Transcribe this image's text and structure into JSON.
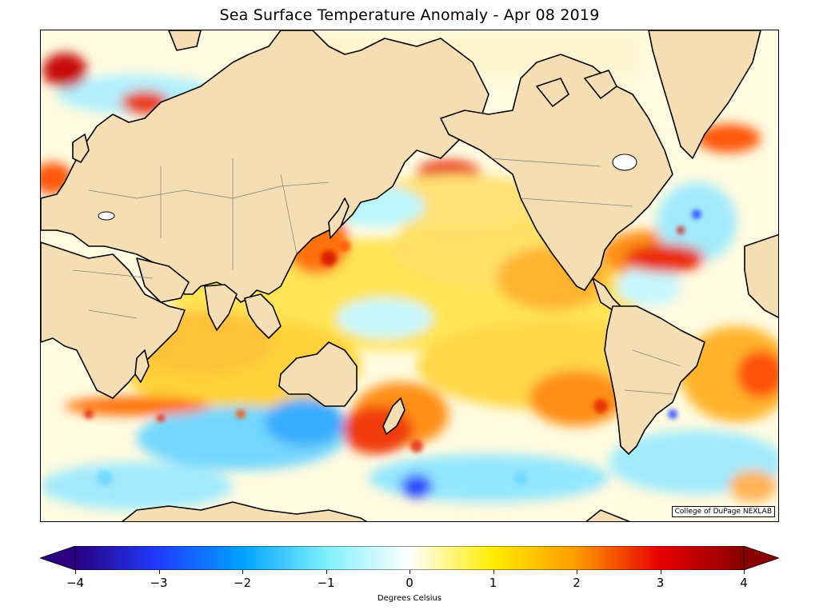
{
  "title": "Sea Surface Temperature Anomaly - Apr 08 2019",
  "credit": "College of DuPage NEXLAB",
  "colorbar": {
    "label": "Degrees Celsius",
    "ticks": [
      "−4",
      "−3",
      "−2",
      "−1",
      "0",
      "1",
      "2",
      "3",
      "4"
    ],
    "tick_values": [
      -4,
      -3,
      -2,
      -1,
      0,
      1,
      2,
      3,
      4
    ],
    "range": [
      -4,
      4
    ],
    "extend": "both",
    "colors": [
      "#2a0080",
      "#1f3cff",
      "#00a2ff",
      "#7ff0ff",
      "#ffffff",
      "#ffee00",
      "#ff9a00",
      "#e80000",
      "#8a0000"
    ]
  },
  "map": {
    "land_color": "#f5deb3",
    "coastline_color": "#000000",
    "border_color": "#808080"
  }
}
